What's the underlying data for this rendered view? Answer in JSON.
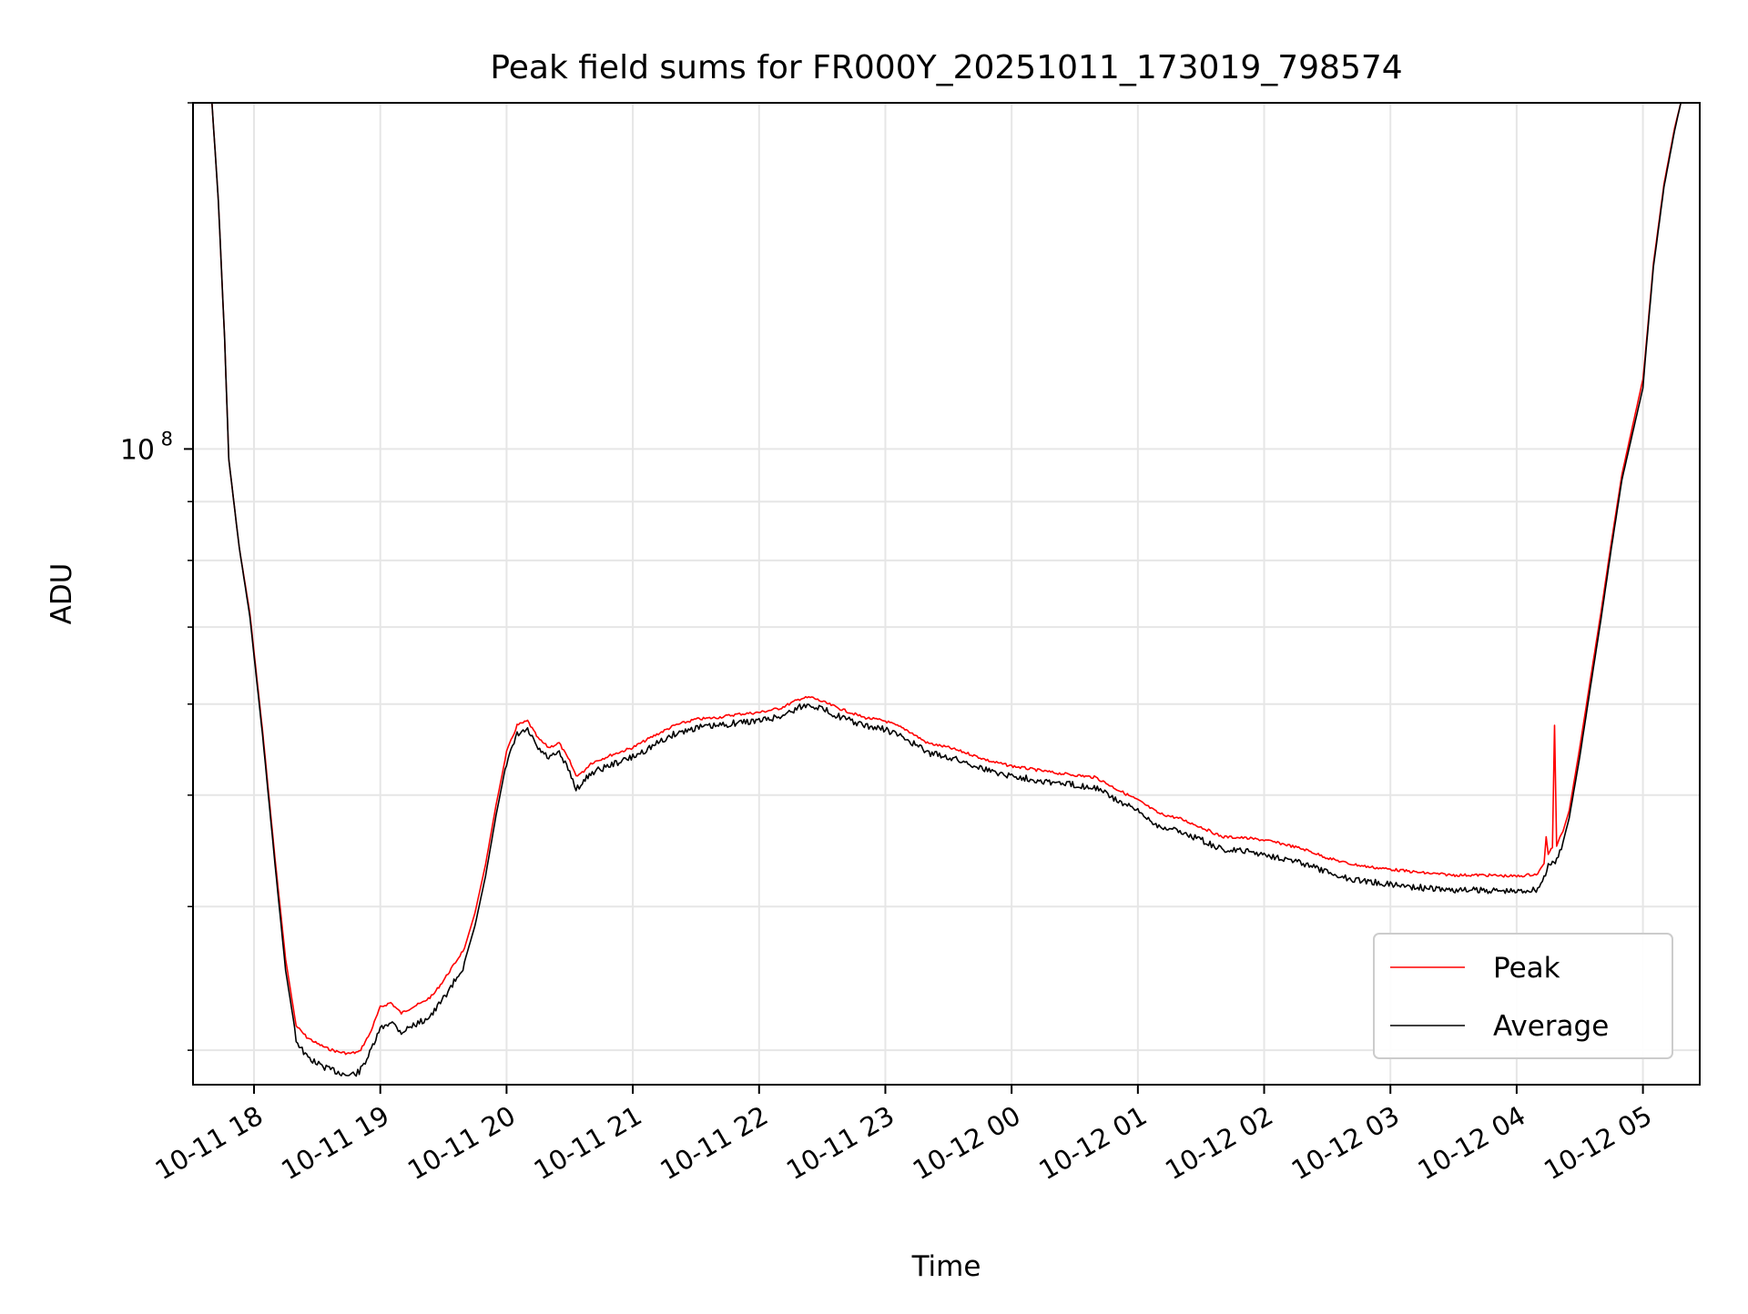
{
  "chart_data": {
    "type": "line",
    "title": "Peak field sums for FR000Y_20251011_173019_798574",
    "xlabel": "Time",
    "ylabel": "ADU",
    "yscale": "log",
    "ylim": [
      28000000,
      200000000
    ],
    "xlim": [
      "2025-10-11 17:31",
      "2025-10-12 05:27"
    ],
    "grid": true,
    "legend_position": "lower-right",
    "x_ticks": [
      {
        "time": "2025-10-11 18:00",
        "label": "10-11 18"
      },
      {
        "time": "2025-10-11 19:00",
        "label": "10-11 19"
      },
      {
        "time": "2025-10-11 20:00",
        "label": "10-11 20"
      },
      {
        "time": "2025-10-11 21:00",
        "label": "10-11 21"
      },
      {
        "time": "2025-10-11 22:00",
        "label": "10-11 22"
      },
      {
        "time": "2025-10-11 23:00",
        "label": "10-11 23"
      },
      {
        "time": "2025-10-12 00:00",
        "label": "10-12 00"
      },
      {
        "time": "2025-10-12 01:00",
        "label": "10-12 01"
      },
      {
        "time": "2025-10-12 02:00",
        "label": "10-12 02"
      },
      {
        "time": "2025-10-12 03:00",
        "label": "10-12 03"
      },
      {
        "time": "2025-10-12 04:00",
        "label": "10-12 04"
      },
      {
        "time": "2025-10-12 05:00",
        "label": "10-12 05"
      }
    ],
    "y_major_ticks": [
      {
        "value": 100000000,
        "base": "10",
        "exp": "8"
      }
    ],
    "y_minor_ticks": [
      30000000,
      40000000,
      50000000,
      60000000,
      70000000,
      80000000,
      90000000,
      200000000
    ],
    "series": [
      {
        "name": "Peak",
        "color": "#ff0000",
        "points": [
          [
            "2025-10-11 17:40",
            200000000
          ],
          [
            "2025-10-11 17:43",
            165000000
          ],
          [
            "2025-10-11 17:46",
            125000000
          ],
          [
            "2025-10-11 17:48",
            98000000
          ],
          [
            "2025-10-11 17:53",
            82000000
          ],
          [
            "2025-10-11 17:58",
            72000000
          ],
          [
            "2025-10-11 18:04",
            57000000
          ],
          [
            "2025-10-11 18:10",
            44000000
          ],
          [
            "2025-10-11 18:15",
            36000000
          ],
          [
            "2025-10-11 18:20",
            31500000
          ],
          [
            "2025-10-11 18:25",
            30800000
          ],
          [
            "2025-10-11 18:30",
            30400000
          ],
          [
            "2025-10-11 18:35",
            30100000
          ],
          [
            "2025-10-11 18:40",
            29900000
          ],
          [
            "2025-10-11 18:45",
            29800000
          ],
          [
            "2025-10-11 18:50",
            29900000
          ],
          [
            "2025-10-11 18:55",
            31000000
          ],
          [
            "2025-10-11 19:00",
            32700000
          ],
          [
            "2025-10-11 19:05",
            33000000
          ],
          [
            "2025-10-11 19:10",
            32300000
          ],
          [
            "2025-10-11 19:15",
            32700000
          ],
          [
            "2025-10-11 19:20",
            33000000
          ],
          [
            "2025-10-11 19:25",
            33500000
          ],
          [
            "2025-10-11 19:30",
            34500000
          ],
          [
            "2025-10-11 19:35",
            35600000
          ],
          [
            "2025-10-11 19:40",
            36800000
          ],
          [
            "2025-10-11 19:45",
            39500000
          ],
          [
            "2025-10-11 19:50",
            43500000
          ],
          [
            "2025-10-11 19:55",
            49000000
          ],
          [
            "2025-10-11 20:00",
            54500000
          ],
          [
            "2025-10-11 20:05",
            57500000
          ],
          [
            "2025-10-11 20:10",
            58000000
          ],
          [
            "2025-10-11 20:15",
            56000000
          ],
          [
            "2025-10-11 20:20",
            55000000
          ],
          [
            "2025-10-11 20:25",
            55500000
          ],
          [
            "2025-10-11 20:30",
            53500000
          ],
          [
            "2025-10-11 20:33",
            52000000
          ],
          [
            "2025-10-11 20:36",
            52300000
          ],
          [
            "2025-10-11 20:40",
            53300000
          ],
          [
            "2025-10-11 20:50",
            54200000
          ],
          [
            "2025-10-11 21:00",
            55000000
          ],
          [
            "2025-10-11 21:10",
            56300000
          ],
          [
            "2025-10-11 21:20",
            57500000
          ],
          [
            "2025-10-11 21:30",
            58200000
          ],
          [
            "2025-10-11 21:40",
            58400000
          ],
          [
            "2025-10-11 21:50",
            58800000
          ],
          [
            "2025-10-11 22:00",
            59000000
          ],
          [
            "2025-10-11 22:10",
            59500000
          ],
          [
            "2025-10-11 22:20",
            60700000
          ],
          [
            "2025-10-11 22:25",
            60800000
          ],
          [
            "2025-10-11 22:30",
            60300000
          ],
          [
            "2025-10-11 22:40",
            59300000
          ],
          [
            "2025-10-11 22:50",
            58400000
          ],
          [
            "2025-10-11 23:00",
            58000000
          ],
          [
            "2025-10-11 23:10",
            57000000
          ],
          [
            "2025-10-11 23:20",
            55500000
          ],
          [
            "2025-10-11 23:30",
            55000000
          ],
          [
            "2025-10-11 23:40",
            54300000
          ],
          [
            "2025-10-11 23:50",
            53500000
          ],
          [
            "2025-10-12 00:00",
            53000000
          ],
          [
            "2025-10-12 00:20",
            52300000
          ],
          [
            "2025-10-12 00:40",
            51800000
          ],
          [
            "2025-10-12 00:50",
            50600000
          ],
          [
            "2025-10-12 01:00",
            49500000
          ],
          [
            "2025-10-12 01:10",
            48200000
          ],
          [
            "2025-10-12 01:20",
            47700000
          ],
          [
            "2025-10-12 01:30",
            46900000
          ],
          [
            "2025-10-12 01:40",
            46000000
          ],
          [
            "2025-10-12 01:50",
            45900000
          ],
          [
            "2025-10-12 02:00",
            45700000
          ],
          [
            "2025-10-12 02:10",
            45300000
          ],
          [
            "2025-10-12 02:20",
            44800000
          ],
          [
            "2025-10-12 02:30",
            44100000
          ],
          [
            "2025-10-12 02:40",
            43600000
          ],
          [
            "2025-10-12 02:50",
            43300000
          ],
          [
            "2025-10-12 03:00",
            43100000
          ],
          [
            "2025-10-12 03:15",
            42800000
          ],
          [
            "2025-10-12 03:30",
            42600000
          ],
          [
            "2025-10-12 03:45",
            42600000
          ],
          [
            "2025-10-12 04:00",
            42500000
          ],
          [
            "2025-10-12 04:10",
            42700000
          ],
          [
            "2025-10-12 04:13",
            43600000
          ],
          [
            "2025-10-12 04:14",
            46000000
          ],
          [
            "2025-10-12 04:15",
            44500000
          ],
          [
            "2025-10-12 04:17",
            45000000
          ],
          [
            "2025-10-12 04:18",
            57500000
          ],
          [
            "2025-10-12 04:19",
            45200000
          ],
          [
            "2025-10-12 04:22",
            46500000
          ],
          [
            "2025-10-12 04:25",
            48500000
          ],
          [
            "2025-10-12 04:30",
            55000000
          ],
          [
            "2025-10-12 04:35",
            63000000
          ],
          [
            "2025-10-12 04:40",
            72000000
          ],
          [
            "2025-10-12 04:45",
            83000000
          ],
          [
            "2025-10-12 04:50",
            95000000
          ],
          [
            "2025-10-12 05:00",
            115000000
          ],
          [
            "2025-10-12 05:01",
            120000000
          ],
          [
            "2025-10-12 05:05",
            145000000
          ],
          [
            "2025-10-12 05:10",
            170000000
          ],
          [
            "2025-10-12 05:15",
            190000000
          ],
          [
            "2025-10-12 05:18",
            200000000
          ]
        ]
      },
      {
        "name": "Average",
        "color": "#000000",
        "points": [
          [
            "2025-10-11 17:40",
            200000000
          ],
          [
            "2025-10-11 17:43",
            165000000
          ],
          [
            "2025-10-11 17:46",
            125000000
          ],
          [
            "2025-10-11 17:48",
            98000000
          ],
          [
            "2025-10-11 17:53",
            82000000
          ],
          [
            "2025-10-11 17:58",
            71500000
          ],
          [
            "2025-10-11 18:04",
            56500000
          ],
          [
            "2025-10-11 18:10",
            43500000
          ],
          [
            "2025-10-11 18:15",
            35200000
          ],
          [
            "2025-10-11 18:20",
            30800000
          ],
          [
            "2025-10-11 18:25",
            29800000
          ],
          [
            "2025-10-11 18:30",
            29400000
          ],
          [
            "2025-10-11 18:35",
            29100000
          ],
          [
            "2025-10-11 18:40",
            28900000
          ],
          [
            "2025-10-11 18:45",
            28700000
          ],
          [
            "2025-10-11 18:50",
            28900000
          ],
          [
            "2025-10-11 18:55",
            30000000
          ],
          [
            "2025-10-11 19:00",
            31500000
          ],
          [
            "2025-10-11 19:05",
            32000000
          ],
          [
            "2025-10-11 19:10",
            31300000
          ],
          [
            "2025-10-11 19:15",
            31700000
          ],
          [
            "2025-10-11 19:20",
            32000000
          ],
          [
            "2025-10-11 19:25",
            32500000
          ],
          [
            "2025-10-11 19:30",
            33500000
          ],
          [
            "2025-10-11 19:35",
            34600000
          ],
          [
            "2025-10-11 19:40",
            35800000
          ],
          [
            "2025-10-11 19:45",
            38500000
          ],
          [
            "2025-10-11 19:50",
            42500000
          ],
          [
            "2025-10-11 19:55",
            48000000
          ],
          [
            "2025-10-11 20:00",
            53500000
          ],
          [
            "2025-10-11 20:05",
            56800000
          ],
          [
            "2025-10-11 20:10",
            57300000
          ],
          [
            "2025-10-11 20:15",
            55200000
          ],
          [
            "2025-10-11 20:20",
            54200000
          ],
          [
            "2025-10-11 20:25",
            54700000
          ],
          [
            "2025-10-11 20:30",
            52700000
          ],
          [
            "2025-10-11 20:33",
            51000000
          ],
          [
            "2025-10-11 20:36",
            51500000
          ],
          [
            "2025-10-11 20:40",
            52600000
          ],
          [
            "2025-10-11 20:50",
            53500000
          ],
          [
            "2025-10-11 21:00",
            54300000
          ],
          [
            "2025-10-11 21:10",
            55600000
          ],
          [
            "2025-10-11 21:20",
            56900000
          ],
          [
            "2025-10-11 21:30",
            57600000
          ],
          [
            "2025-10-11 21:40",
            57800000
          ],
          [
            "2025-10-11 21:50",
            58200000
          ],
          [
            "2025-10-11 22:00",
            58400000
          ],
          [
            "2025-10-11 22:10",
            58900000
          ],
          [
            "2025-10-11 22:20",
            60100000
          ],
          [
            "2025-10-11 22:25",
            60300000
          ],
          [
            "2025-10-11 22:30",
            59800000
          ],
          [
            "2025-10-11 22:40",
            58700000
          ],
          [
            "2025-10-11 22:50",
            57800000
          ],
          [
            "2025-10-11 23:00",
            57400000
          ],
          [
            "2025-10-11 23:10",
            56300000
          ],
          [
            "2025-10-11 23:20",
            54800000
          ],
          [
            "2025-10-11 23:30",
            54300000
          ],
          [
            "2025-10-11 23:40",
            53600000
          ],
          [
            "2025-10-11 23:50",
            52800000
          ],
          [
            "2025-10-12 00:00",
            52300000
          ],
          [
            "2025-10-12 00:20",
            51600000
          ],
          [
            "2025-10-12 00:40",
            51100000
          ],
          [
            "2025-10-12 00:50",
            49800000
          ],
          [
            "2025-10-12 01:00",
            48700000
          ],
          [
            "2025-10-12 01:10",
            47300000
          ],
          [
            "2025-10-12 01:20",
            46800000
          ],
          [
            "2025-10-12 01:30",
            46000000
          ],
          [
            "2025-10-12 01:40",
            45100000
          ],
          [
            "2025-10-12 01:50",
            45000000
          ],
          [
            "2025-10-12 02:00",
            44700000
          ],
          [
            "2025-10-12 02:10",
            44300000
          ],
          [
            "2025-10-12 02:20",
            43800000
          ],
          [
            "2025-10-12 02:30",
            43100000
          ],
          [
            "2025-10-12 02:40",
            42600000
          ],
          [
            "2025-10-12 02:50",
            42300000
          ],
          [
            "2025-10-12 03:00",
            42100000
          ],
          [
            "2025-10-12 03:15",
            41800000
          ],
          [
            "2025-10-12 03:30",
            41600000
          ],
          [
            "2025-10-12 03:45",
            41600000
          ],
          [
            "2025-10-12 04:00",
            41500000
          ],
          [
            "2025-10-12 04:10",
            41700000
          ],
          [
            "2025-10-12 04:13",
            42700000
          ],
          [
            "2025-10-12 04:15",
            43600000
          ],
          [
            "2025-10-12 04:19",
            44200000
          ],
          [
            "2025-10-12 04:22",
            45500000
          ],
          [
            "2025-10-12 04:25",
            47800000
          ],
          [
            "2025-10-12 04:30",
            54000000
          ],
          [
            "2025-10-12 04:35",
            62000000
          ],
          [
            "2025-10-12 04:40",
            71000000
          ],
          [
            "2025-10-12 04:45",
            82000000
          ],
          [
            "2025-10-12 04:50",
            94000000
          ],
          [
            "2025-10-12 05:00",
            113000000
          ],
          [
            "2025-10-12 05:01",
            119000000
          ],
          [
            "2025-10-12 05:05",
            144000000
          ],
          [
            "2025-10-12 05:10",
            169000000
          ],
          [
            "2025-10-12 05:15",
            189000000
          ],
          [
            "2025-10-12 05:18",
            200000000
          ]
        ]
      }
    ]
  }
}
